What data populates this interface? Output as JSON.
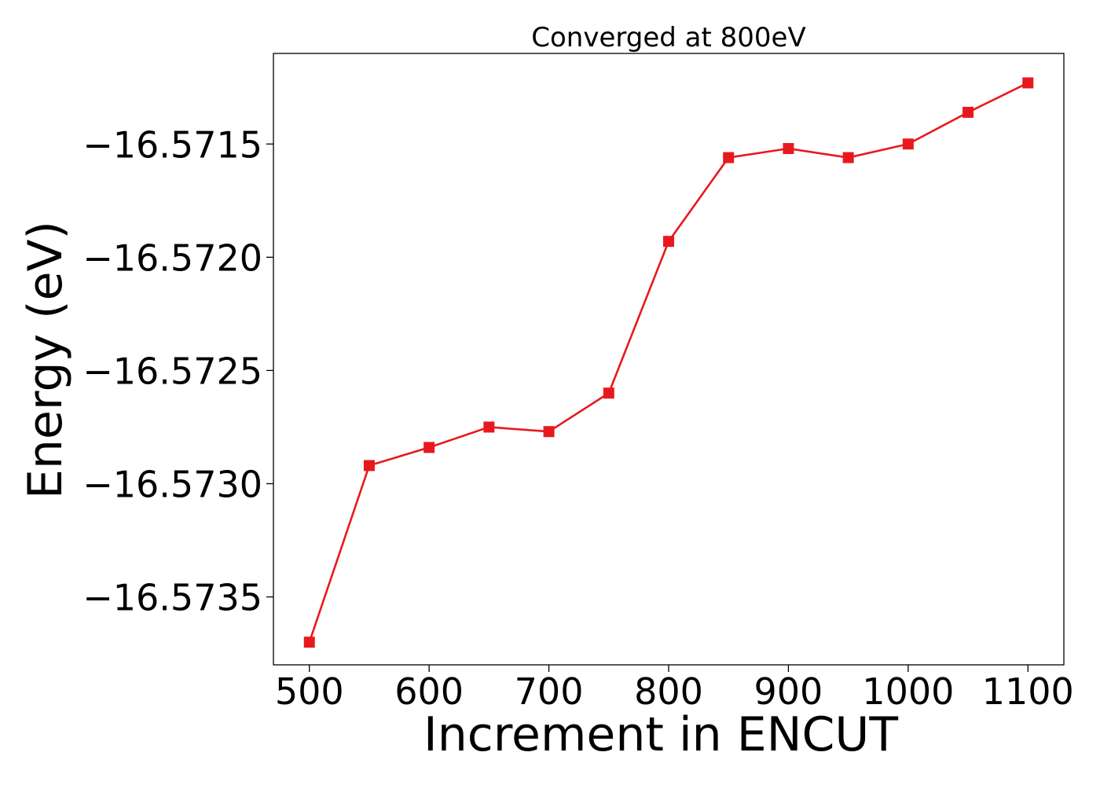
{
  "chart_data": {
    "type": "line",
    "title": "Converged at 800eV",
    "xlabel": "Increment in ENCUT",
    "ylabel": "Energy (eV)",
    "xlim": [
      470,
      1130
    ],
    "ylim": [
      -16.5738,
      -16.5711
    ],
    "xticks": [
      500,
      600,
      700,
      800,
      900,
      1000,
      1100
    ],
    "xtick_labels": [
      "500",
      "600",
      "700",
      "800",
      "900",
      "1000",
      "1100"
    ],
    "yticks": [
      -16.5715,
      -16.572,
      -16.5725,
      -16.573,
      -16.5735
    ],
    "ytick_labels": [
      "−16.5715",
      "−16.5720",
      "−16.5725",
      "−16.5730",
      "−16.5735"
    ],
    "grid": false,
    "marker": "square",
    "color": "#e8191e",
    "series": [
      {
        "x": [
          500,
          550,
          600,
          650,
          700,
          750,
          800,
          850,
          900,
          950,
          1000,
          1050,
          1100
        ],
        "y": [
          -16.5737,
          -16.57292,
          -16.57284,
          -16.57275,
          -16.57277,
          -16.5726,
          -16.57193,
          -16.57156,
          -16.57152,
          -16.57156,
          -16.5715,
          -16.57136,
          -16.57123
        ]
      }
    ]
  }
}
